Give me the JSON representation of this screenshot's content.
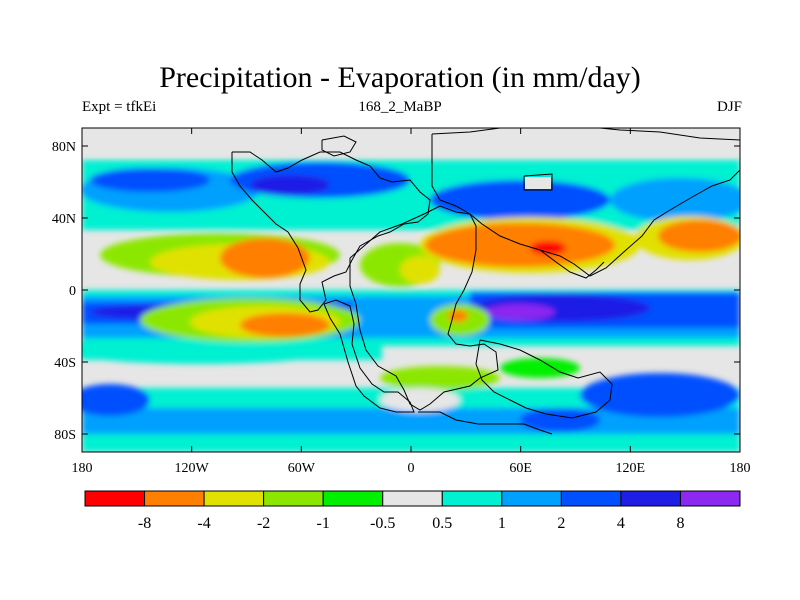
{
  "title": "Precipitation - Evaporation (in mm/day)",
  "subtitle_left": "Expt = tfkEi",
  "subtitle_center": "168_2_MaBP",
  "subtitle_right": "DJF",
  "map": {
    "projection": "cylindrical-equidistant",
    "lon_range": [
      -180,
      180
    ],
    "lat_range": [
      -90,
      90
    ],
    "x_ticks": [
      {
        "value": -180,
        "label": "180"
      },
      {
        "value": -120,
        "label": "120W"
      },
      {
        "value": -60,
        "label": "60W"
      },
      {
        "value": 0,
        "label": "0"
      },
      {
        "value": 60,
        "label": "60E"
      },
      {
        "value": 120,
        "label": "120E"
      },
      {
        "value": 180,
        "label": "180"
      }
    ],
    "y_ticks": [
      {
        "value": 80,
        "label": "80N"
      },
      {
        "value": 40,
        "label": "40N"
      },
      {
        "value": 0,
        "label": "0"
      },
      {
        "value": -40,
        "label": "40S"
      },
      {
        "value": -80,
        "label": "80S"
      }
    ]
  },
  "colorbar": {
    "colors": [
      "#ff0000",
      "#ff7f00",
      "#e1e100",
      "#8ce700",
      "#00f000",
      "#e6e6e6",
      "#00f0d2",
      "#00a0ff",
      "#0050ff",
      "#1e1ee6",
      "#8c28f0"
    ],
    "labels": [
      "-8",
      "-4",
      "-2",
      "-1",
      "-0.5",
      "0.5",
      "1",
      "2",
      "4",
      "8"
    ]
  }
}
